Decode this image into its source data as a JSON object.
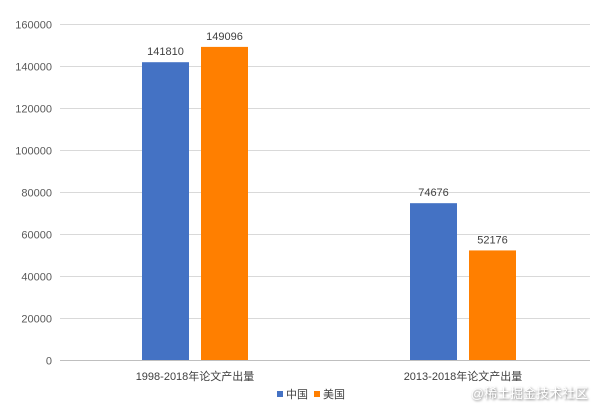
{
  "chart_data": {
    "type": "bar",
    "categories": [
      "1998-2018年论文产出量",
      "2013-2018年论文产出量"
    ],
    "series": [
      {
        "name": "中国",
        "values": [
          141810,
          74676
        ],
        "color": "#4472C4"
      },
      {
        "name": "美国",
        "values": [
          149096,
          52176
        ],
        "color": "#FF7F00"
      }
    ],
    "title": "",
    "xlabel": "",
    "ylabel": "",
    "ylim": [
      0,
      160000
    ],
    "yticks": [
      0,
      20000,
      40000,
      60000,
      80000,
      100000,
      120000,
      140000,
      160000
    ],
    "data_labels": true,
    "grid": true,
    "legend": "bottom"
  },
  "watermark": "@稀土掘金技术社区"
}
